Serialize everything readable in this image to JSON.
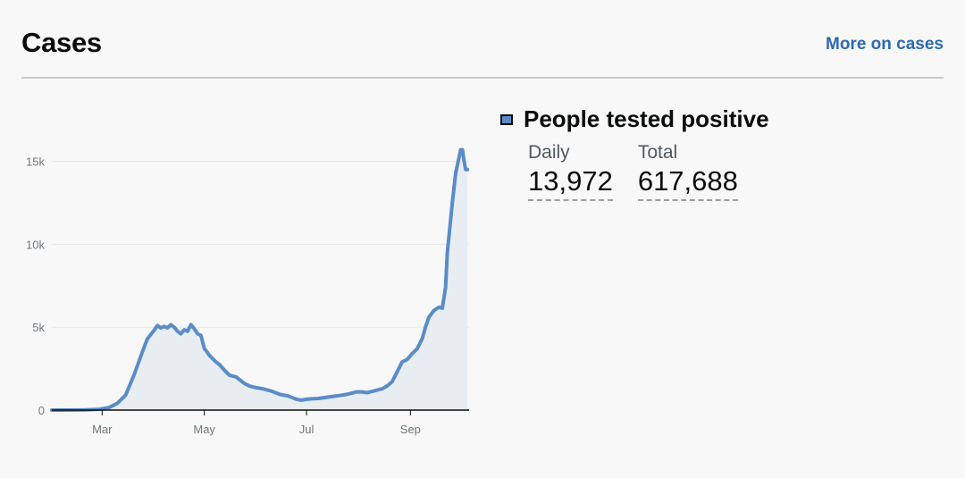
{
  "header": {
    "title": "Cases",
    "more_link": "More on cases"
  },
  "metric": {
    "label": "People tested positive",
    "swatch_color": "#5a8cc7",
    "daily_caption": "Daily",
    "daily_value": "13,972",
    "total_caption": "Total",
    "total_value": "617,688"
  },
  "chart_data": {
    "type": "area",
    "title": "",
    "xlabel": "",
    "ylabel": "",
    "y_ticks": [
      {
        "value": 0,
        "label": "0"
      },
      {
        "value": 5000,
        "label": "5k"
      },
      {
        "value": 10000,
        "label": "10k"
      },
      {
        "value": 15000,
        "label": "15k"
      }
    ],
    "x_ticks": [
      {
        "date": "2020-03-01",
        "label": "Mar"
      },
      {
        "date": "2020-05-01",
        "label": "May"
      },
      {
        "date": "2020-07-01",
        "label": "Jul"
      },
      {
        "date": "2020-09-01",
        "label": "Sep"
      }
    ],
    "xlim": [
      "2020-01-31",
      "2020-10-06"
    ],
    "ylim": [
      0,
      16000
    ],
    "grid": true,
    "line_color": "#5a8cc7",
    "fill_color": "#e8edf2",
    "series": [
      {
        "x": [
          "2020-01-31",
          "2020-02-10",
          "2020-02-20",
          "2020-02-28",
          "2020-03-05",
          "2020-03-10",
          "2020-03-15",
          "2020-03-20",
          "2020-03-25",
          "2020-03-28",
          "2020-04-01",
          "2020-04-03",
          "2020-04-05",
          "2020-04-07",
          "2020-04-09",
          "2020-04-11",
          "2020-04-13",
          "2020-04-15",
          "2020-04-17",
          "2020-04-19",
          "2020-04-21",
          "2020-04-23",
          "2020-04-25",
          "2020-04-27",
          "2020-04-29",
          "2020-05-01",
          "2020-05-02",
          "2020-05-04",
          "2020-05-06",
          "2020-05-08",
          "2020-05-10",
          "2020-05-13",
          "2020-05-16",
          "2020-05-20",
          "2020-05-25",
          "2020-05-28",
          "2020-06-01",
          "2020-06-05",
          "2020-06-10",
          "2020-06-15",
          "2020-06-20",
          "2020-06-25",
          "2020-06-28",
          "2020-07-01",
          "2020-07-04",
          "2020-07-08",
          "2020-07-15",
          "2020-07-20",
          "2020-07-25",
          "2020-07-31",
          "2020-08-03",
          "2020-08-06",
          "2020-08-09",
          "2020-08-12",
          "2020-08-15",
          "2020-08-18",
          "2020-08-21",
          "2020-08-24",
          "2020-08-27",
          "2020-08-30",
          "2020-09-02",
          "2020-09-05",
          "2020-09-08",
          "2020-09-10",
          "2020-09-12",
          "2020-09-15",
          "2020-09-18",
          "2020-09-20",
          "2020-09-22",
          "2020-09-23",
          "2020-09-24",
          "2020-09-26",
          "2020-09-28",
          "2020-10-01",
          "2020-10-02",
          "2020-10-03",
          "2020-10-04",
          "2020-10-05"
        ],
        "y": [
          0,
          0,
          10,
          50,
          150,
          400,
          900,
          2100,
          3500,
          4300,
          4800,
          5100,
          4950,
          5050,
          4950,
          5150,
          5000,
          4750,
          4600,
          4850,
          4750,
          5150,
          4900,
          4600,
          4500,
          3700,
          3600,
          3300,
          3100,
          2900,
          2750,
          2400,
          2100,
          2000,
          1600,
          1450,
          1350,
          1280,
          1150,
          950,
          850,
          650,
          600,
          650,
          680,
          700,
          800,
          870,
          950,
          1100,
          1100,
          1050,
          1120,
          1200,
          1280,
          1450,
          1700,
          2300,
          2900,
          3050,
          3400,
          3700,
          4300,
          5000,
          5600,
          6000,
          6200,
          6150,
          7400,
          9500,
          10500,
          12500,
          14300,
          15700,
          15700,
          15000,
          14500,
          14500
        ]
      }
    ]
  }
}
